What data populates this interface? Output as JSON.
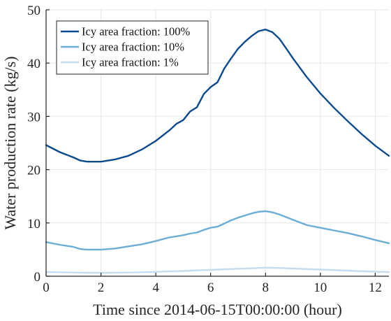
{
  "chart_data": {
    "type": "line",
    "title": "",
    "xlabel": "Time since 2014-06-15T00:00:00 (hour)",
    "ylabel": "Water production rate (kg/s)",
    "xlim": [
      0,
      12.5
    ],
    "ylim": [
      0,
      50
    ],
    "xticks": [
      0,
      2,
      4,
      6,
      8,
      10,
      12
    ],
    "yticks": [
      0,
      10,
      20,
      30,
      40,
      50
    ],
    "grid": true,
    "legend_position": "top-left",
    "x": [
      0,
      0.5,
      1,
      1.25,
      1.5,
      2,
      2.5,
      3,
      3.5,
      4,
      4.5,
      4.75,
      5,
      5.25,
      5.5,
      5.75,
      6,
      6.25,
      6.5,
      6.75,
      7,
      7.25,
      7.5,
      7.75,
      8,
      8.25,
      8.5,
      8.75,
      9,
      9.5,
      10,
      10.5,
      11,
      11.5,
      12,
      12.5
    ],
    "series": [
      {
        "name": "Icy area fraction: 100%",
        "color": "#0b4a8f",
        "values": [
          24.6,
          23.3,
          22.3,
          21.7,
          21.5,
          21.5,
          21.9,
          22.6,
          23.8,
          25.4,
          27.4,
          28.6,
          29.3,
          30.9,
          31.7,
          34.2,
          35.5,
          36.4,
          39.0,
          40.9,
          42.7,
          44.0,
          45.1,
          46.0,
          46.3,
          45.8,
          44.6,
          42.8,
          40.9,
          37.4,
          34.3,
          31.6,
          29.1,
          26.7,
          24.5,
          22.6
        ]
      },
      {
        "name": "Icy area fraction: 10%",
        "color": "#6aaed6",
        "values": [
          6.4,
          5.9,
          5.5,
          5.1,
          5.0,
          5.0,
          5.2,
          5.6,
          6.0,
          6.6,
          7.3,
          7.5,
          7.7,
          8.0,
          8.2,
          8.7,
          9.1,
          9.3,
          9.9,
          10.5,
          11.0,
          11.4,
          11.8,
          12.1,
          12.2,
          12.0,
          11.6,
          11.1,
          10.6,
          9.6,
          9.1,
          8.6,
          8.1,
          7.5,
          6.8,
          6.2
        ]
      },
      {
        "name": "Icy area fraction: 1%",
        "color": "#c4dcee",
        "values": [
          0.8,
          0.75,
          0.7,
          0.68,
          0.65,
          0.65,
          0.67,
          0.7,
          0.75,
          0.82,
          0.9,
          0.95,
          1.0,
          1.05,
          1.1,
          1.15,
          1.2,
          1.25,
          1.3,
          1.35,
          1.4,
          1.45,
          1.5,
          1.55,
          1.6,
          1.58,
          1.55,
          1.5,
          1.45,
          1.35,
          1.25,
          1.15,
          1.05,
          0.95,
          0.85,
          0.78
        ]
      }
    ]
  }
}
